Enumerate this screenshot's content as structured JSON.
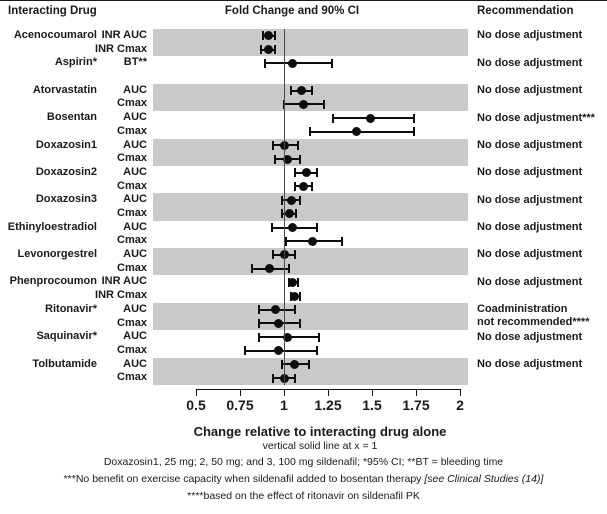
{
  "headers": {
    "interacting_drug": "Interacting Drug",
    "fold_change": "Fold Change and 90% CI",
    "recommendation": "Recommendation"
  },
  "footnotes": {
    "vertical_line": "vertical solid line at x = 1",
    "doses": "Doxazosin1, 25 mg; 2, 50 mg; and 3, 100 mg sildenafil; *95% CI; **BT = bleeding time",
    "bosentan_text": "***No benefit on exercise capacity when sildenafil added to bosentan therapy ",
    "bosentan_ref": "[see Clinical Studies (14)]",
    "ritonavir": "****based on the effect of ritonavir on sildenafil PK"
  },
  "chart_data": {
    "type": "scatter",
    "subtype": "forest-plot",
    "title": "Fold Change and 90% CI",
    "xlabel": "Change relative to interacting drug alone",
    "xlim": [
      0.5,
      2
    ],
    "x_ticks": [
      "0.5",
      "0.75",
      "1",
      "1.25",
      "1.5",
      "1.75",
      "2"
    ],
    "x_tick_values": [
      0.5,
      0.75,
      1,
      1.25,
      1.5,
      1.75,
      2
    ],
    "reference_line_x": 1,
    "band_color": "#c9c9c9",
    "marker_color": "#0d0d0d",
    "groups": [
      {
        "drug": "Acenocoumarol",
        "recommendation": "No dose adjustment",
        "shaded": true,
        "rows": [
          {
            "metric": "INR AUC",
            "value": 0.91,
            "lo": 0.88,
            "hi": 0.95
          },
          {
            "metric": "INR Cmax",
            "value": 0.91,
            "lo": 0.87,
            "hi": 0.95
          }
        ]
      },
      {
        "drug": "Aspirin*",
        "recommendation": "No dose adjustment",
        "shaded": false,
        "rows": [
          {
            "metric": "BT**",
            "value": 1.05,
            "lo": 0.89,
            "hi": 1.27
          }
        ]
      },
      {
        "drug": "Atorvastatin",
        "recommendation": "No dose adjustment",
        "shaded": true,
        "rows": [
          {
            "metric": "AUC",
            "value": 1.1,
            "lo": 1.04,
            "hi": 1.16
          },
          {
            "metric": "Cmax",
            "value": 1.11,
            "lo": 1.0,
            "hi": 1.23
          }
        ]
      },
      {
        "drug": "Bosentan",
        "recommendation": "No dose adjustment***",
        "shaded": false,
        "rows": [
          {
            "metric": "AUC",
            "value": 1.49,
            "lo": 1.28,
            "hi": 1.74
          },
          {
            "metric": "Cmax",
            "value": 1.41,
            "lo": 1.15,
            "hi": 1.74
          }
        ]
      },
      {
        "drug": "Doxazosin1",
        "recommendation": "No dose adjustment",
        "shaded": true,
        "rows": [
          {
            "metric": "AUC",
            "value": 1.0,
            "lo": 0.94,
            "hi": 1.08
          },
          {
            "metric": "Cmax",
            "value": 1.02,
            "lo": 0.95,
            "hi": 1.09
          }
        ]
      },
      {
        "drug": "Doxazosin2",
        "recommendation": "No dose adjustment",
        "shaded": false,
        "rows": [
          {
            "metric": "AUC",
            "value": 1.13,
            "lo": 1.06,
            "hi": 1.19
          },
          {
            "metric": "Cmax",
            "value": 1.11,
            "lo": 1.06,
            "hi": 1.16
          }
        ]
      },
      {
        "drug": "Doxazosin3",
        "recommendation": "No dose adjustment",
        "shaded": true,
        "rows": [
          {
            "metric": "AUC",
            "value": 1.04,
            "lo": 0.99,
            "hi": 1.09
          },
          {
            "metric": "Cmax",
            "value": 1.03,
            "lo": 0.99,
            "hi": 1.07
          }
        ]
      },
      {
        "drug": "Ethinyloestradiol",
        "recommendation": "No dose adjustment",
        "shaded": false,
        "rows": [
          {
            "metric": "AUC",
            "value": 1.05,
            "lo": 0.93,
            "hi": 1.19
          },
          {
            "metric": "Cmax",
            "value": 1.16,
            "lo": 1.01,
            "hi": 1.33
          }
        ]
      },
      {
        "drug": "Levonorgestrel",
        "recommendation": "No dose adjustment",
        "shaded": true,
        "rows": [
          {
            "metric": "AUC",
            "value": 1.0,
            "lo": 0.94,
            "hi": 1.06
          },
          {
            "metric": "Cmax",
            "value": 0.92,
            "lo": 0.82,
            "hi": 1.03
          }
        ]
      },
      {
        "drug": "Phenprocoumon",
        "recommendation": "No dose adjustment",
        "shaded": false,
        "rows": [
          {
            "metric": "INR AUC",
            "value": 1.05,
            "lo": 1.03,
            "hi": 1.08
          },
          {
            "metric": "INR Cmax",
            "value": 1.06,
            "lo": 1.04,
            "hi": 1.09
          }
        ]
      },
      {
        "drug": "Ritonavir*",
        "recommendation": "Coadministration\nnot recommended****",
        "shaded": true,
        "rows": [
          {
            "metric": "AUC",
            "value": 0.95,
            "lo": 0.86,
            "hi": 1.06
          },
          {
            "metric": "Cmax",
            "value": 0.97,
            "lo": 0.86,
            "hi": 1.09
          }
        ]
      },
      {
        "drug": "Saquinavir*",
        "recommendation": "No dose adjustment",
        "shaded": false,
        "rows": [
          {
            "metric": "AUC",
            "value": 1.02,
            "lo": 0.86,
            "hi": 1.2
          },
          {
            "metric": "Cmax",
            "value": 0.97,
            "lo": 0.78,
            "hi": 1.19
          }
        ]
      },
      {
        "drug": "Tolbutamide",
        "recommendation": "No dose adjustment",
        "shaded": true,
        "rows": [
          {
            "metric": "AUC",
            "value": 1.06,
            "lo": 0.99,
            "hi": 1.14
          },
          {
            "metric": "Cmax",
            "value": 1.0,
            "lo": 0.94,
            "hi": 1.06
          }
        ]
      }
    ]
  }
}
